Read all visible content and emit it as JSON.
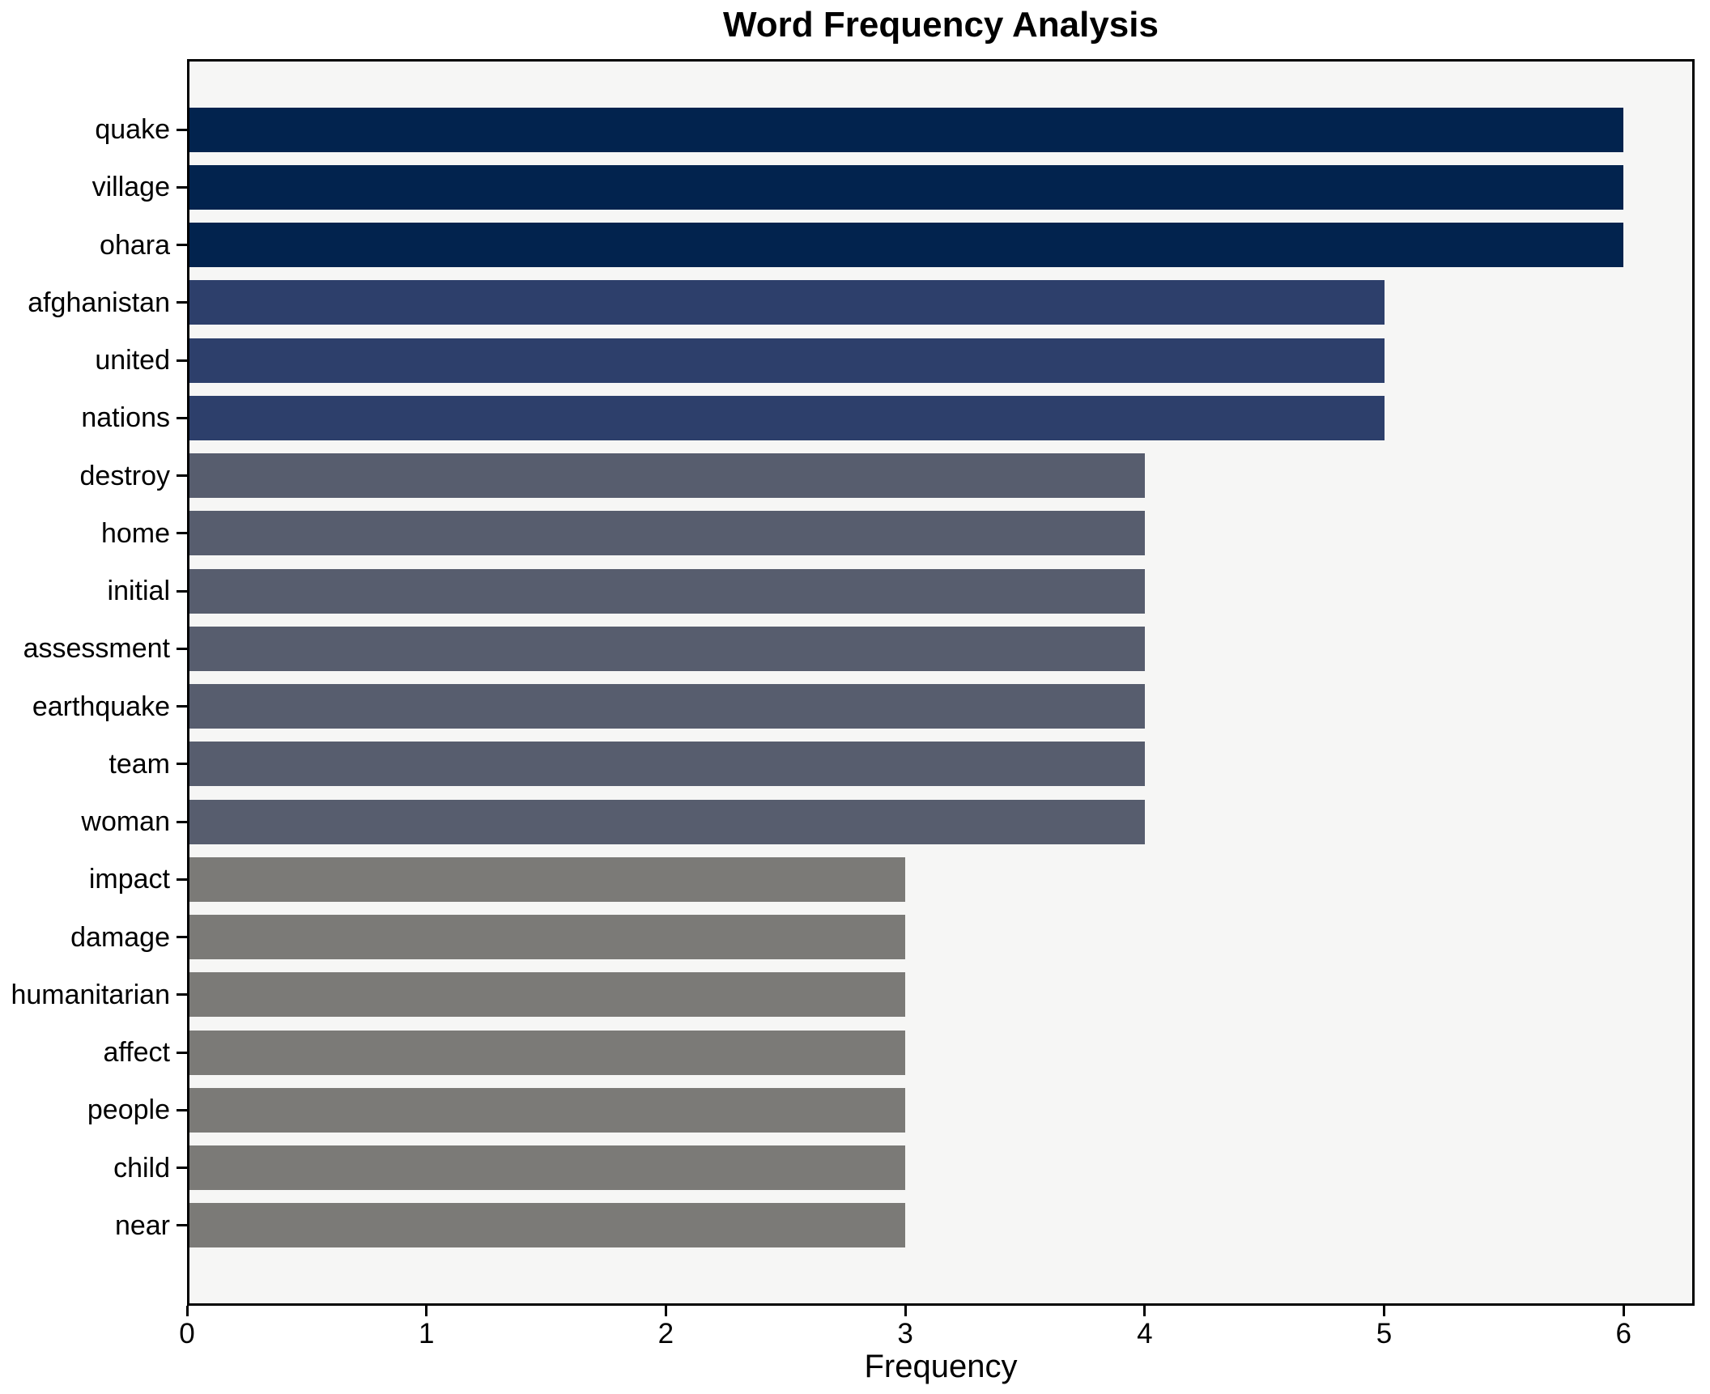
{
  "chart_data": {
    "type": "bar",
    "orientation": "horizontal",
    "title": "Word Frequency Analysis",
    "xlabel": "Frequency",
    "ylabel": "",
    "categories": [
      "quake",
      "village",
      "ohara",
      "afghanistan",
      "united",
      "nations",
      "destroy",
      "home",
      "initial",
      "assessment",
      "earthquake",
      "team",
      "woman",
      "impact",
      "damage",
      "humanitarian",
      "affect",
      "people",
      "child",
      "near"
    ],
    "values": [
      6,
      6,
      6,
      5,
      5,
      5,
      4,
      4,
      4,
      4,
      4,
      4,
      4,
      3,
      3,
      3,
      3,
      3,
      3,
      3
    ],
    "bar_colors": [
      "#02234e",
      "#02234e",
      "#02234e",
      "#2d3f6b",
      "#2d3f6b",
      "#2d3f6b",
      "#575d6e",
      "#575d6e",
      "#575d6e",
      "#575d6e",
      "#575d6e",
      "#575d6e",
      "#575d6e",
      "#7b7a77",
      "#7b7a77",
      "#7b7a77",
      "#7b7a77",
      "#7b7a77",
      "#7b7a77",
      "#7b7a77"
    ],
    "color_by_value": {
      "6": "#02234e",
      "5": "#2d3f6b",
      "4": "#575d6e",
      "3": "#7b7a77"
    },
    "xticks": [
      0,
      1,
      2,
      3,
      4,
      5,
      6
    ],
    "xlim": [
      0,
      6.3
    ],
    "grid": false,
    "legend": null
  },
  "style_colors": {
    "figure_bg": "#ffffff",
    "plot_bg": "#f6f6f5",
    "spine": "#000000",
    "text": "#000000"
  }
}
